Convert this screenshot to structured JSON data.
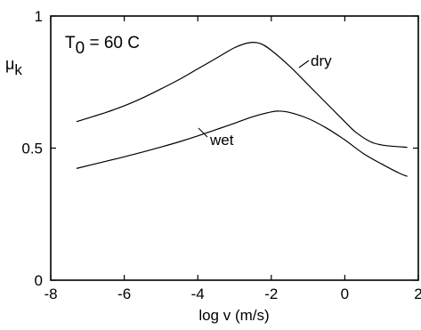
{
  "chart_data": {
    "type": "line",
    "title": "",
    "xlabel": "log v (m/s)",
    "ylabel": {
      "base": "μ",
      "sub": "k"
    },
    "xlim": [
      -8,
      2
    ],
    "ylim": [
      0,
      1
    ],
    "xticks": [
      -8,
      -6,
      -4,
      -2,
      0,
      2
    ],
    "xtick_labels": [
      "-8",
      "-6",
      "-4",
      "-2",
      "0",
      "2"
    ],
    "yticks": [
      0,
      0.5,
      1
    ],
    "ytick_labels": [
      "0",
      "0.5",
      "1"
    ],
    "grid": false,
    "legend": "none",
    "annotation": {
      "base": "T",
      "sub": "0",
      "rest": " = 60 C"
    },
    "series": [
      {
        "name": "dry",
        "x": [
          -7.3,
          -6.5,
          -6.0,
          -5.5,
          -5.0,
          -4.5,
          -4.0,
          -3.5,
          -3.0,
          -2.6,
          -2.3,
          -2.0,
          -1.5,
          -1.0,
          -0.5,
          0.0,
          0.3,
          0.7,
          1.0,
          1.3,
          1.7
        ],
        "y": [
          0.6,
          0.635,
          0.66,
          0.69,
          0.724,
          0.76,
          0.8,
          0.84,
          0.88,
          0.899,
          0.896,
          0.87,
          0.81,
          0.74,
          0.67,
          0.6,
          0.56,
          0.524,
          0.512,
          0.507,
          0.503
        ]
      },
      {
        "name": "wet",
        "x": [
          -7.3,
          -6.5,
          -6.0,
          -5.5,
          -5.0,
          -4.5,
          -4.0,
          -3.5,
          -3.0,
          -2.5,
          -2.0,
          -1.8,
          -1.5,
          -1.0,
          -0.5,
          0.0,
          0.5,
          1.0,
          1.5,
          1.7
        ],
        "y": [
          0.423,
          0.45,
          0.467,
          0.485,
          0.504,
          0.524,
          0.546,
          0.57,
          0.594,
          0.619,
          0.637,
          0.64,
          0.635,
          0.612,
          0.576,
          0.531,
          0.48,
          0.44,
          0.404,
          0.393
        ]
      }
    ],
    "labels": [
      {
        "text": "dry",
        "series": 0
      },
      {
        "text": "wet",
        "series": 1
      }
    ]
  }
}
